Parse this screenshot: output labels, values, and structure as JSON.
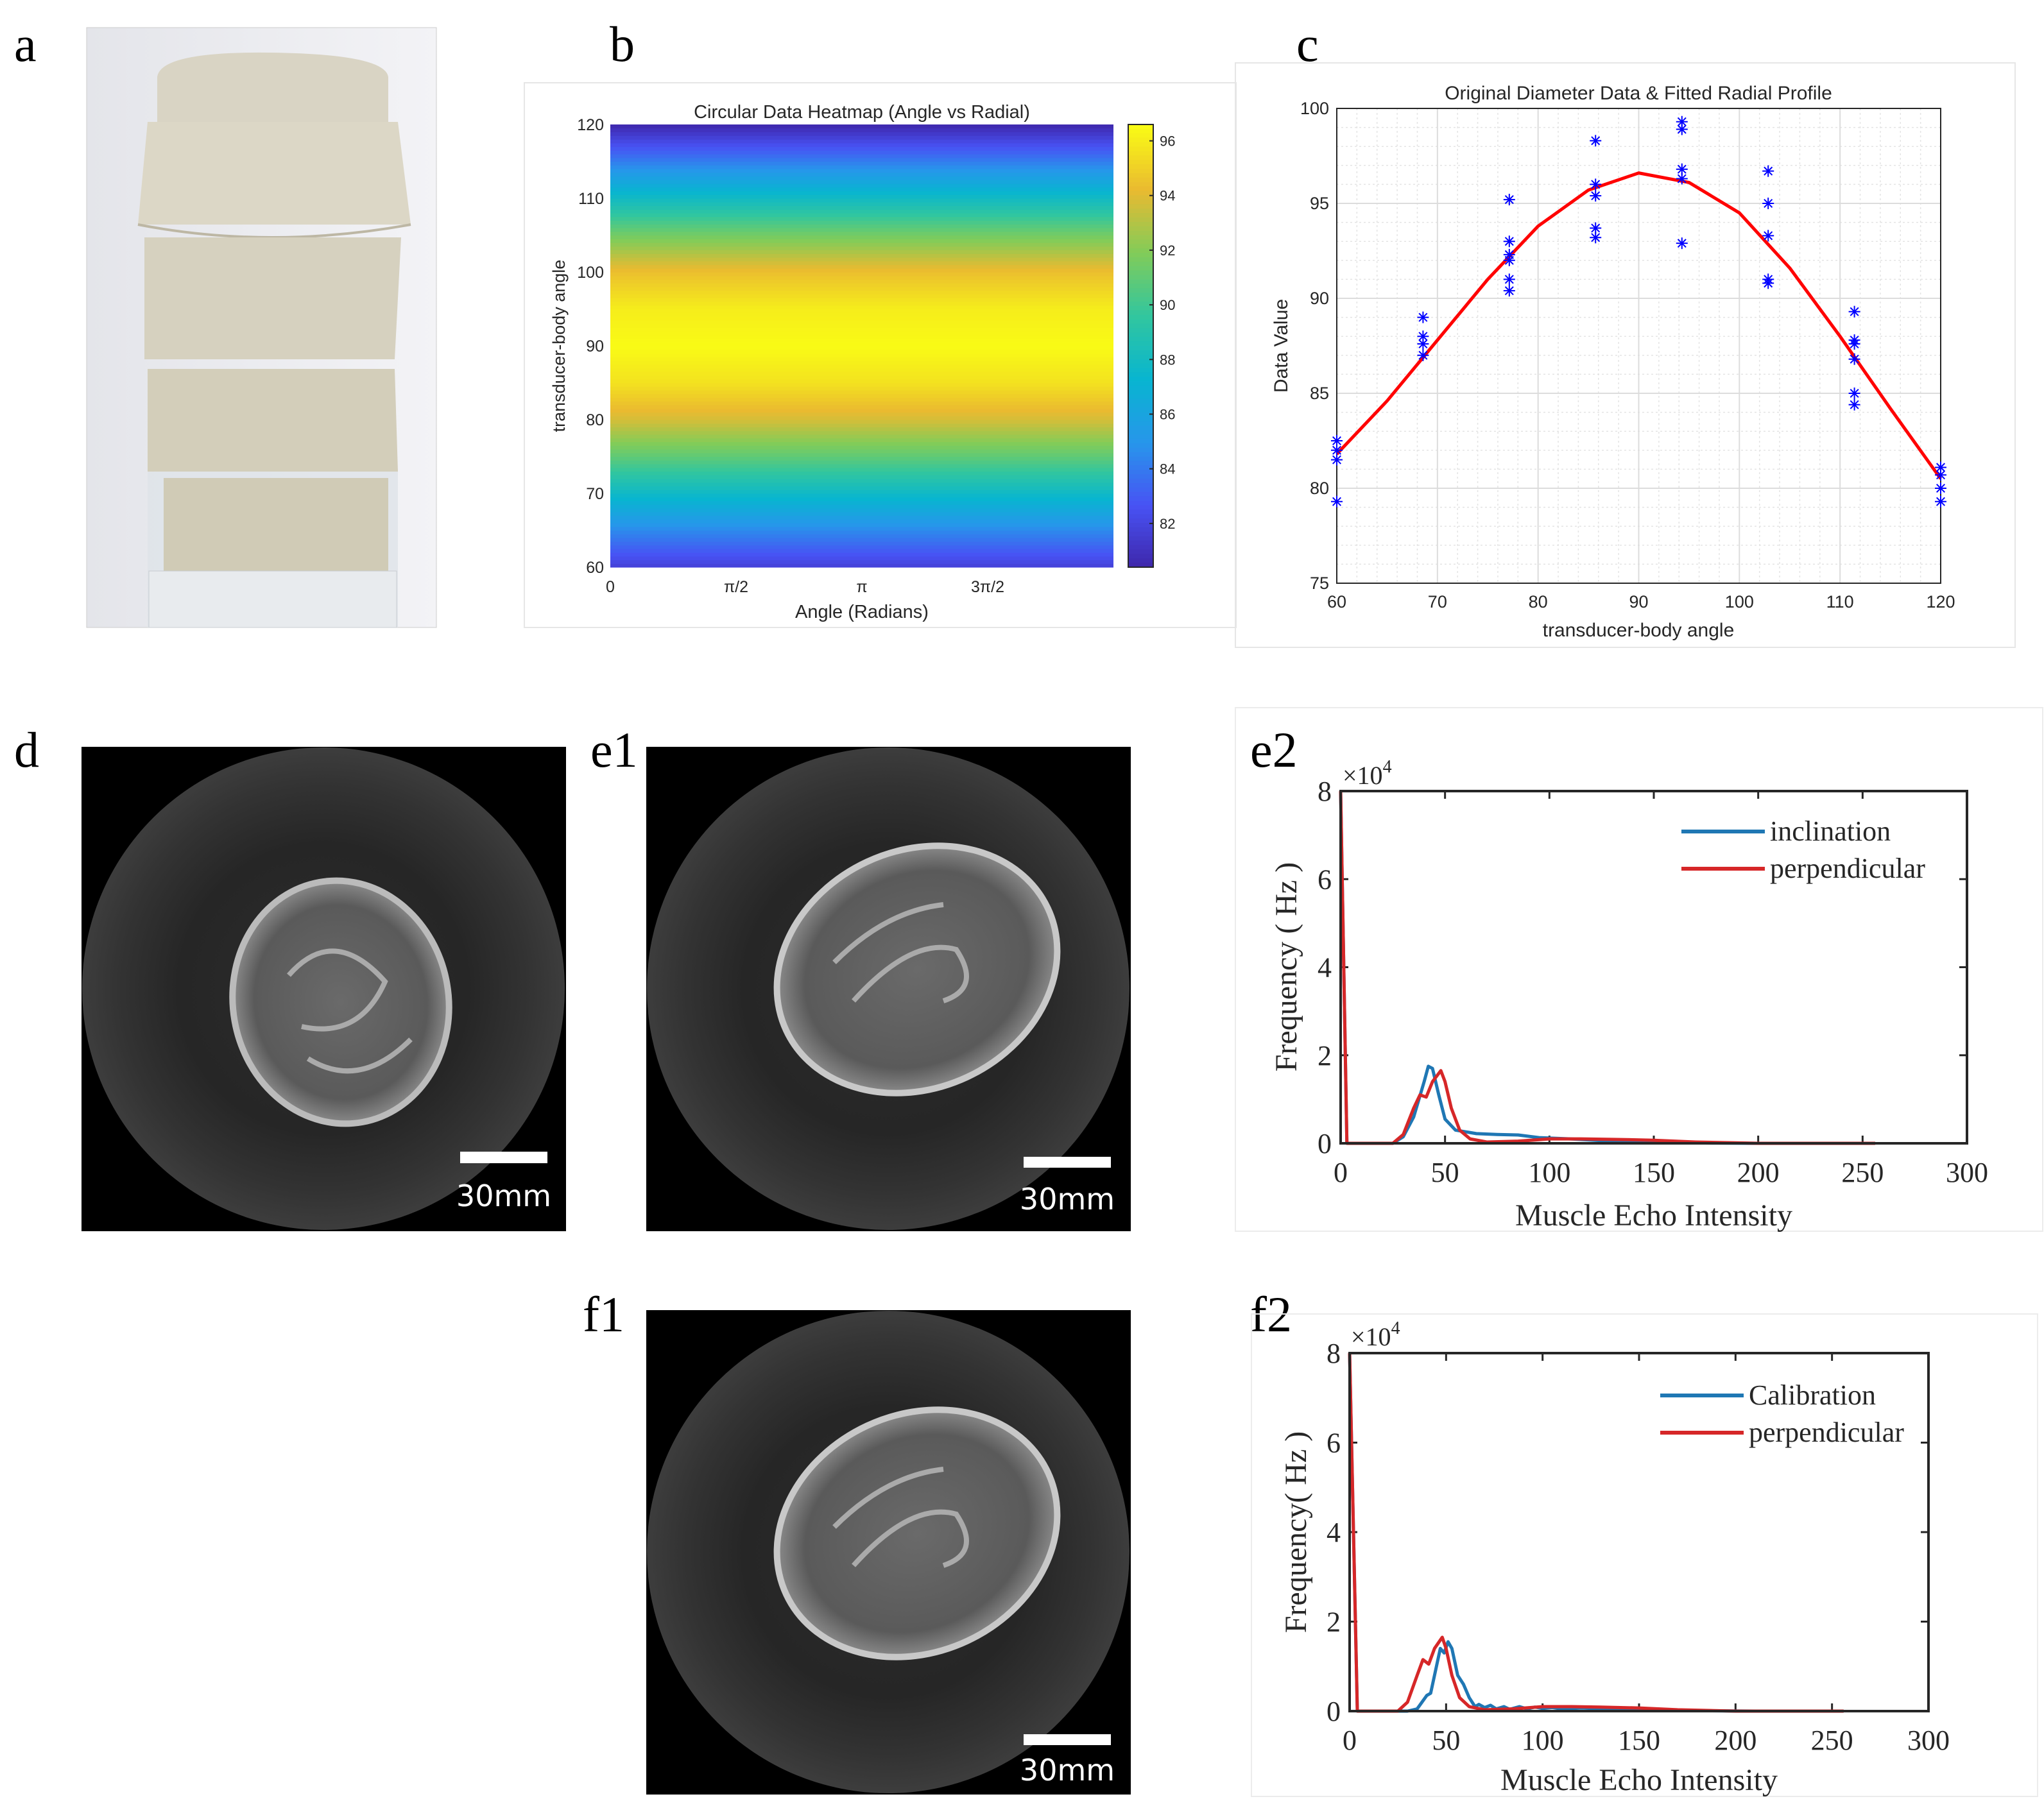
{
  "panel_labels": {
    "a": "a",
    "b": "b",
    "c": "c",
    "d": "d",
    "e1": "e1",
    "e2": "e2",
    "f1": "f1",
    "f2": "f2"
  },
  "images": {
    "a": {
      "description_shown": "phantom photo"
    },
    "d": {
      "scale_bar": "30mm"
    },
    "e1": {
      "scale_bar": "30mm"
    },
    "f1": {
      "scale_bar": "30mm"
    }
  },
  "chart_data": [
    {
      "id": "b",
      "type": "heatmap",
      "title": "Circular Data Heatmap (Angle vs Radial)",
      "xlabel": "Angle (Radians)",
      "ylabel": "transducer-body angle",
      "xlim": [
        0,
        6.2832
      ],
      "ylim": [
        60,
        120
      ],
      "xtick_labels": [
        "0",
        "π/2",
        "π",
        "3π/2"
      ],
      "xtick_values": [
        0,
        1.5708,
        3.1416,
        4.7124
      ],
      "ytick_labels": [
        "60",
        "70",
        "80",
        "90",
        "100",
        "110",
        "120"
      ],
      "colormap": "parula",
      "clim": [
        80.4,
        96.6
      ],
      "colorbar_tick_labels": [
        "82",
        "84",
        "86",
        "88",
        "90",
        "92",
        "94",
        "96"
      ],
      "note_rows_constant_along_x": true,
      "row_profile": {
        "y": [
          60,
          65,
          70,
          75,
          80,
          85,
          90,
          95,
          100,
          105,
          110,
          115,
          120
        ],
        "value": [
          81.8,
          84.6,
          87.8,
          91.0,
          93.8,
          95.7,
          96.6,
          96.1,
          94.5,
          91.6,
          88.0,
          84.2,
          80.5
        ]
      }
    },
    {
      "id": "c",
      "type": "scatter",
      "title": "Original Diameter Data & Fitted Radial Profile",
      "xlabel": "transducer-body angle",
      "ylabel": "Data Value",
      "xlim": [
        60,
        120
      ],
      "ylim": [
        75,
        100
      ],
      "xtick_labels": [
        "60",
        "70",
        "80",
        "90",
        "100",
        "110",
        "120"
      ],
      "ytick_labels": [
        "75",
        "80",
        "85",
        "90",
        "95",
        "100"
      ],
      "grid": true,
      "colors": {
        "points": "#0000ff",
        "fit": "#ff0000"
      },
      "points": [
        {
          "x": 60,
          "y": [
            82.5,
            82.0,
            81.5,
            79.3
          ]
        },
        {
          "x": 68.57,
          "y": [
            89.0,
            88.0,
            87.6,
            87.0
          ]
        },
        {
          "x": 77.14,
          "y": [
            95.2,
            93.0,
            92.3,
            92.0,
            91.0,
            90.4
          ]
        },
        {
          "x": 85.71,
          "y": [
            98.3,
            96.0,
            95.4,
            93.7,
            93.2
          ]
        },
        {
          "x": 94.29,
          "y": [
            99.3,
            98.9,
            96.8,
            96.3,
            92.9
          ]
        },
        {
          "x": 102.86,
          "y": [
            96.7,
            95.0,
            93.3,
            91.0,
            90.8
          ]
        },
        {
          "x": 111.43,
          "y": [
            89.3,
            87.8,
            87.6,
            86.8,
            85.0,
            84.4
          ]
        },
        {
          "x": 120,
          "y": [
            81.1,
            80.7,
            80.0,
            79.3
          ]
        }
      ],
      "fit": {
        "x": [
          60,
          65,
          70,
          75,
          80,
          85,
          90,
          95,
          100,
          105,
          110,
          115,
          120
        ],
        "y": [
          81.8,
          84.6,
          87.8,
          91.0,
          93.8,
          95.7,
          96.6,
          96.1,
          94.5,
          91.6,
          88.0,
          84.2,
          80.5
        ]
      }
    },
    {
      "id": "e2",
      "type": "line",
      "xlabel": "Muscle Echo Intensity",
      "ylabel": "Frequency ( Hz )",
      "y_multiplier": "×10",
      "y_exponent": "4",
      "xlim": [
        0,
        300
      ],
      "ylim": [
        0,
        8
      ],
      "xtick_labels": [
        "0",
        "50",
        "100",
        "150",
        "200",
        "250",
        "300"
      ],
      "ytick_labels": [
        "0",
        "2",
        "4",
        "6",
        "8"
      ],
      "legend": "top-right",
      "series": [
        {
          "name": "inclination",
          "color": "#1f77b4",
          "x": [
            0,
            3,
            25,
            30,
            35,
            40,
            42,
            44,
            47,
            50,
            55,
            65,
            75,
            85,
            95,
            110,
            130,
            150,
            180,
            200,
            256
          ],
          "y": [
            8,
            0,
            0,
            0.15,
            0.6,
            1.4,
            1.75,
            1.7,
            1.1,
            0.55,
            0.3,
            0.22,
            0.2,
            0.19,
            0.13,
            0.1,
            0.05,
            0.02,
            0.005,
            0,
            0
          ]
        },
        {
          "name": "perpendicular",
          "color": "#d62728",
          "x": [
            0,
            3,
            25,
            30,
            35,
            38,
            41,
            44,
            48,
            50,
            53,
            57,
            62,
            70,
            85,
            100,
            115,
            130,
            150,
            170,
            200,
            256
          ],
          "y": [
            8,
            0,
            0,
            0.2,
            0.8,
            1.1,
            1.05,
            1.4,
            1.65,
            1.4,
            0.8,
            0.3,
            0.1,
            0.03,
            0.05,
            0.1,
            0.1,
            0.09,
            0.07,
            0.03,
            0,
            0
          ]
        }
      ]
    },
    {
      "id": "f2",
      "type": "line",
      "xlabel": "Muscle Echo Intensity",
      "ylabel": "Frequency( Hz )",
      "y_multiplier": "×10",
      "y_exponent": "4",
      "xlim": [
        0,
        300
      ],
      "ylim": [
        0,
        8
      ],
      "xtick_labels": [
        "0",
        "50",
        "100",
        "150",
        "200",
        "250",
        "300"
      ],
      "ytick_labels": [
        "0",
        "2",
        "4",
        "6",
        "8"
      ],
      "legend": "top-right",
      "series": [
        {
          "name": "Calibration",
          "color": "#1f77b4",
          "x": [
            0,
            4,
            30,
            35,
            40,
            42,
            45,
            47,
            49,
            51,
            53,
            56,
            59,
            62,
            65,
            67,
            70,
            73,
            76,
            80,
            83,
            88,
            92,
            96,
            100,
            105,
            110,
            120,
            135,
            150,
            180,
            210,
            256
          ],
          "y": [
            8,
            0,
            0,
            0.05,
            0.35,
            0.4,
            1.0,
            1.4,
            1.3,
            1.55,
            1.4,
            0.8,
            0.6,
            0.3,
            0.1,
            0.15,
            0.08,
            0.13,
            0.05,
            0.1,
            0.04,
            0.1,
            0.05,
            0.09,
            0.06,
            0.08,
            0.05,
            0.07,
            0.05,
            0.03,
            0.01,
            0,
            0
          ]
        },
        {
          "name": "perpendicular",
          "color": "#d62728",
          "x": [
            0,
            4,
            25,
            30,
            35,
            38,
            41,
            44,
            48,
            50,
            53,
            57,
            62,
            70,
            85,
            100,
            115,
            130,
            150,
            170,
            200,
            256
          ],
          "y": [
            8,
            0,
            0,
            0.2,
            0.8,
            1.15,
            1.05,
            1.4,
            1.65,
            1.4,
            0.8,
            0.3,
            0.1,
            0.03,
            0.05,
            0.1,
            0.1,
            0.09,
            0.07,
            0.03,
            0,
            0
          ]
        }
      ]
    }
  ]
}
